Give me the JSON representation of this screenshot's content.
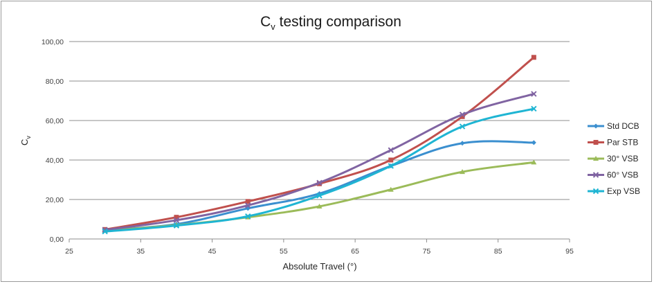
{
  "chart_data": {
    "type": "line",
    "title": "Cv testing comparison",
    "title_main": "C",
    "title_sub": "v",
    "title_rest": " testing comparison",
    "xlabel": "Absolute Travel (°)",
    "ylabel_main": "C",
    "ylabel_sub": "v",
    "xlim": [
      25,
      95
    ],
    "ylim": [
      0,
      100
    ],
    "x_ticks": [
      "25",
      "35",
      "45",
      "55",
      "65",
      "75",
      "85",
      "95"
    ],
    "y_ticks": [
      "0,00",
      "20,00",
      "40,00",
      "60,00",
      "80,00",
      "100,00"
    ],
    "grid": "horizontal",
    "legend_position": "right",
    "x": [
      30,
      40,
      50,
      60,
      70,
      80,
      90
    ],
    "series": [
      {
        "name": "Std DCB",
        "color": "#3b8fcf",
        "marker": "diamond",
        "values": [
          4.5,
          7.5,
          15.5,
          23,
          37,
          48.5,
          48.8
        ]
      },
      {
        "name": "Par STB",
        "color": "#c0504d",
        "marker": "square",
        "values": [
          4.8,
          11,
          19,
          28,
          40,
          62,
          92
        ]
      },
      {
        "name": "30° VSB",
        "color": "#9bbb59",
        "marker": "triangle",
        "values": [
          4.2,
          7,
          11,
          16.5,
          25,
          34,
          38.8
        ]
      },
      {
        "name": "60° VSB",
        "color": "#8064a2",
        "marker": "x",
        "values": [
          4.6,
          9.5,
          17,
          28.5,
          45,
          63,
          73.5
        ]
      },
      {
        "name": "Exp VSB",
        "color": "#1fb5d3",
        "marker": "x",
        "values": [
          3.8,
          6.8,
          11.5,
          22,
          37,
          57,
          66
        ]
      }
    ]
  }
}
